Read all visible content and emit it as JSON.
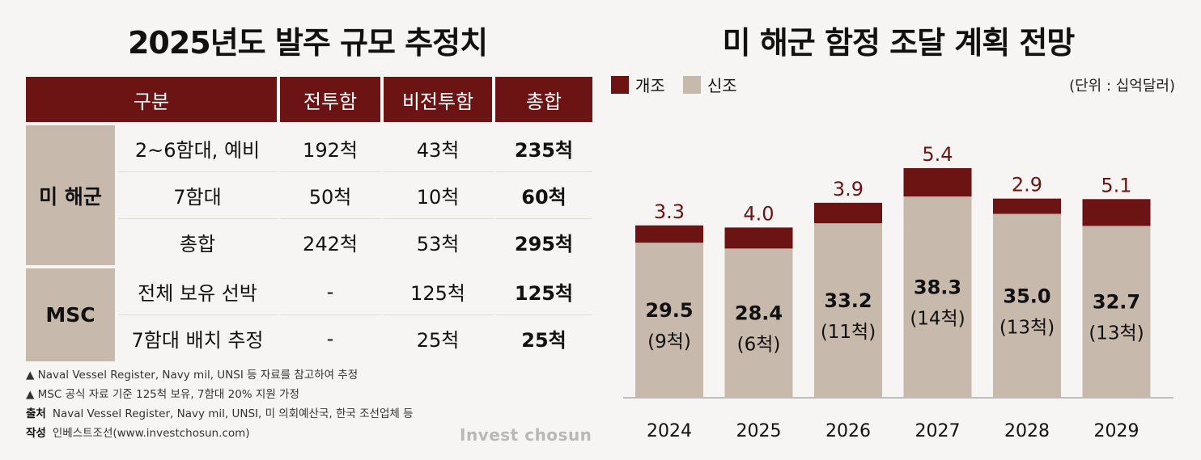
{
  "left_title": "2025년도 발주 규모 추정치",
  "right_title": "미 해군 함정 조달 계획 전망",
  "table": {
    "headers": [
      "구분",
      "전투함",
      "비전투함",
      "총합"
    ],
    "groups": [
      {
        "name": "미 해군",
        "rows": [
          {
            "label": "2~6함대, 예비",
            "combat": "192척",
            "noncombat": "43척",
            "total": "235척"
          },
          {
            "label": "7함대",
            "combat": "50척",
            "noncombat": "10척",
            "total": "60척"
          },
          {
            "label": "총합",
            "combat": "242척",
            "noncombat": "53척",
            "total": "295척"
          }
        ]
      },
      {
        "name": "MSC",
        "rows": [
          {
            "label": "전체 보유 선박",
            "combat": "-",
            "noncombat": "125척",
            "total": "125척"
          },
          {
            "label": "7함대 배치 추정",
            "combat": "-",
            "noncombat": "25척",
            "total": "25척"
          }
        ]
      }
    ]
  },
  "notes": {
    "note1": "▲ Naval Vessel Register, Navy mil, UNSI 등 자료를 참고하여 추정",
    "note2": "▲ MSC 공식 자료 기준 125척 보유, 7함대 20% 지원 가정",
    "source_label": "출처",
    "source_text": "Naval Vessel Register, Navy mil, UNSI, 미 의회예산국, 한국 조선업체 등",
    "author_label": "작성",
    "author_text": "인베스트조선(www.investchosun.com)"
  },
  "brand": "Invest chosun",
  "chart_data": {
    "type": "bar",
    "stacked": true,
    "title": "미 해군 함정 조달 계획 전망",
    "unit": "(단위 : 십억달러)",
    "categories": [
      "2024",
      "2025",
      "2026",
      "2027",
      "2028",
      "2029"
    ],
    "series": [
      {
        "name": "신조",
        "values": [
          29.5,
          28.4,
          33.2,
          38.3,
          35.0,
          32.7
        ],
        "labels": [
          "29.5",
          "28.4",
          "33.2",
          "38.3",
          "35.0",
          "32.7"
        ],
        "sublabels": [
          "(9척)",
          "(6척)",
          "(11척)",
          "(14척)",
          "(13척)",
          "(13척)"
        ],
        "color": "#c8b9ad"
      },
      {
        "name": "개조",
        "values": [
          3.3,
          4.0,
          3.9,
          5.4,
          2.9,
          5.1
        ],
        "labels": [
          "3.3",
          "4.0",
          "3.9",
          "5.4",
          "2.9",
          "5.1"
        ],
        "color": "#6b1413"
      }
    ],
    "ylim": [
      0,
      50
    ],
    "legend": "top-left",
    "grid": false
  },
  "colors": {
    "accent": "#6b1413",
    "beige": "#c8b9ad"
  }
}
